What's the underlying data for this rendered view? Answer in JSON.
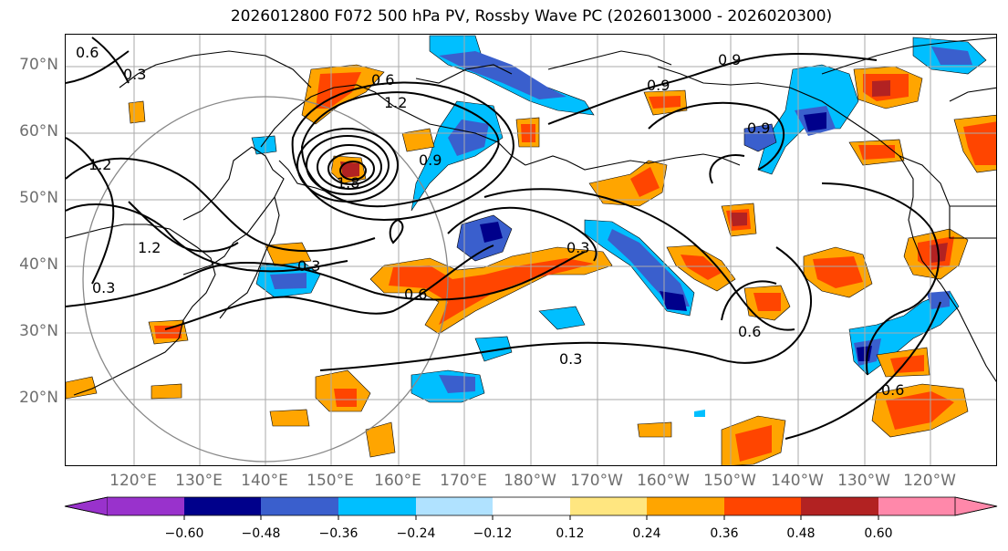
{
  "title": "2026012800 F072 500 hPa PV, Rossby Wave PC (2026013000 - 2026020300)",
  "lat_labels": [
    "70°N",
    "60°N",
    "50°N",
    "40°N",
    "30°N",
    "20°N"
  ],
  "lon_labels": [
    "120°E",
    "130°E",
    "140°E",
    "150°E",
    "160°E",
    "170°E",
    "180°W",
    "170°W",
    "160°W",
    "150°W",
    "140°W",
    "130°W",
    "120°W"
  ],
  "contour_labels": [
    "0.6",
    "0.3",
    "0.6",
    "1.2",
    "0.9",
    "0.9",
    "0.9",
    "0.9",
    "1.2",
    "0.3",
    "1.2",
    "1.8",
    "0.3",
    "0.3",
    "0.6",
    "0.3",
    "0.6",
    "0.6"
  ],
  "colorbar": {
    "ticks": [
      "−0.60",
      "−0.48",
      "−0.36",
      "−0.24",
      "−0.12",
      "0.12",
      "0.24",
      "0.36",
      "0.48",
      "0.60"
    ],
    "colors": [
      "#9932cc",
      "#00008b",
      "#3a5fcd",
      "#00bfff",
      "#b0e2ff",
      "#ffffff",
      "#ffe680",
      "#ffa500",
      "#ff4500",
      "#b22222",
      "#ff88aa"
    ]
  },
  "shading_colors": {
    "neg_strong": "#00008b",
    "neg_mid": "#3a5fcd",
    "neg_weak": "#00bfff",
    "neg_faint": "#b0e2ff",
    "pos_faint": "#ffe680",
    "pos_weak": "#ffa500",
    "pos_mid": "#ff4500",
    "pos_strong": "#b22222"
  }
}
